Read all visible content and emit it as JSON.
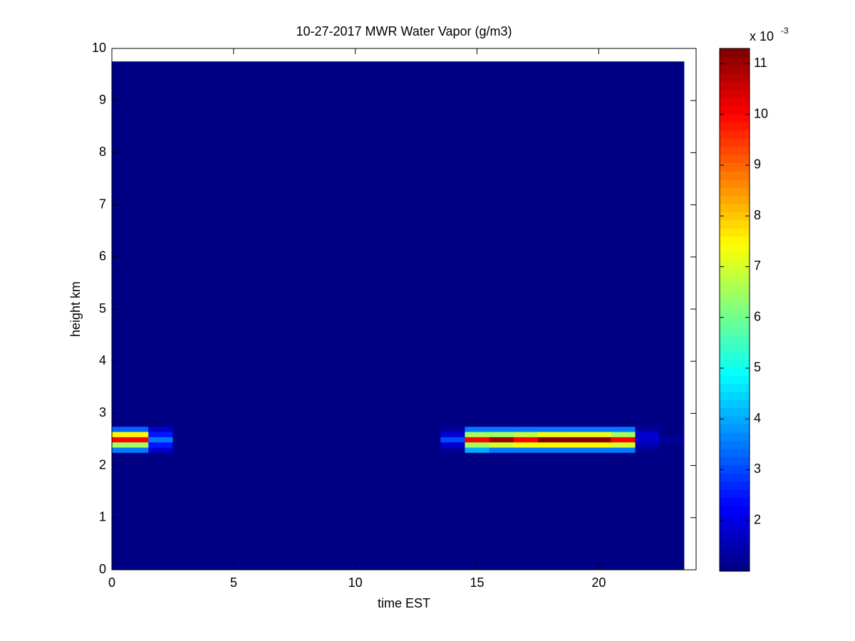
{
  "chart_data": {
    "type": "heatmap",
    "title": "10-27-2017 MWR Water Vapor (g/m3)",
    "x_label": "time EST",
    "y_label": "height km",
    "x_edges": [
      0,
      1.5,
      2.5,
      3.5,
      4.5,
      5.5,
      6.5,
      7.5,
      8.5,
      9.5,
      10.5,
      11.5,
      12.5,
      13.5,
      14.5,
      15.5,
      16.5,
      17.5,
      18.5,
      19.5,
      20.5,
      21.5,
      22.5,
      23.5
    ],
    "y_edges": [
      0,
      2.25,
      2.35,
      2.45,
      2.55,
      2.65,
      2.75,
      9.75
    ],
    "values": [
      [
        1.05,
        1.05,
        1.05,
        1.05,
        1.05,
        1.05,
        1.05,
        1.05,
        1.05,
        1.05,
        1.05,
        1.05,
        1.05,
        1.05,
        1.05,
        1.05,
        1.05,
        1.05,
        1.05,
        1.05,
        1.05,
        1.05,
        1.05
      ],
      [
        3.5,
        1.8,
        1.05,
        1.05,
        1.05,
        1.05,
        1.05,
        1.05,
        1.05,
        1.05,
        1.05,
        1.05,
        1.05,
        1.3,
        4,
        3.5,
        3.5,
        3.5,
        3.5,
        3.5,
        3.5,
        1.2,
        1.05
      ],
      [
        6.5,
        2.5,
        1.05,
        1.05,
        1.05,
        1.05,
        1.05,
        1.05,
        1.05,
        1.05,
        1.05,
        1.05,
        1.05,
        1.8,
        6.5,
        7,
        7.3,
        7.5,
        7.5,
        7.5,
        7,
        1.5,
        1.05
      ],
      [
        10,
        3.5,
        1.05,
        1.05,
        1.05,
        1.05,
        1.05,
        1.05,
        1.05,
        1.05,
        1.05,
        1.05,
        1.05,
        3,
        10,
        11,
        10,
        11.2,
        11.2,
        11.2,
        10,
        1.8,
        1.3
      ],
      [
        7.5,
        2.5,
        1.05,
        1.05,
        1.05,
        1.05,
        1.05,
        1.05,
        1.05,
        1.05,
        1.05,
        1.05,
        1.05,
        1.8,
        6.5,
        6.5,
        6.8,
        7.3,
        7.3,
        7.3,
        6.5,
        1.8,
        1.05
      ],
      [
        3.3,
        1.8,
        1.05,
        1.05,
        1.05,
        1.05,
        1.05,
        1.05,
        1.05,
        1.05,
        1.05,
        1.05,
        1.05,
        1.3,
        3.5,
        3.5,
        3.5,
        3.5,
        3.5,
        3.5,
        3.5,
        1.3,
        1.05
      ],
      [
        1.05,
        1.05,
        1.05,
        1.05,
        1.05,
        1.05,
        1.05,
        1.05,
        1.05,
        1.05,
        1.05,
        1.05,
        1.05,
        1.05,
        1.05,
        1.05,
        1.05,
        1.05,
        1.05,
        1.05,
        1.05,
        1.05,
        1.05
      ]
    ],
    "xlim": [
      0,
      24
    ],
    "ylim": [
      0,
      10
    ],
    "xticks": [
      0,
      5,
      10,
      15,
      20
    ],
    "yticks": [
      0,
      1,
      2,
      3,
      4,
      5,
      6,
      7,
      8,
      9,
      10
    ],
    "colormap": "jet",
    "clim": [
      1.0,
      11.3
    ],
    "colorbar_ticks": [
      2,
      3,
      4,
      5,
      6,
      7,
      8,
      9,
      10,
      11
    ],
    "colorbar_multiplier": {
      "base": "x 10",
      "exponent": "-3"
    }
  }
}
